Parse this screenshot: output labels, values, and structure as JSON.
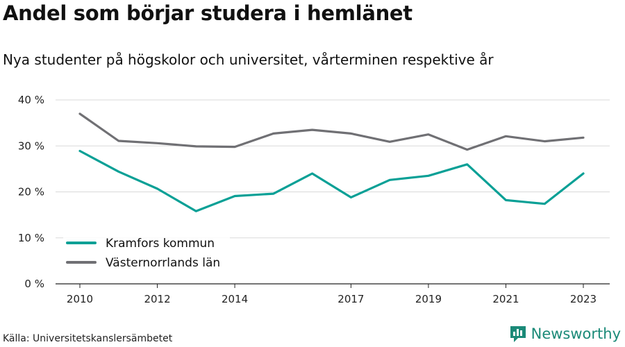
{
  "header": {
    "title": "Andel som börjar studera i hemlänet",
    "subtitle": "Nya studenter på högskolor och universitet, vårterminen respektive år"
  },
  "footer": {
    "source": "Källa: Universitetskanslersämbetet",
    "brand": "Newsworthy"
  },
  "colors": {
    "kramfors": "#0aa096",
    "vasternorrland": "#707074",
    "grid": "#d9d9d9",
    "brand": "#1b8a78"
  },
  "chart_data": {
    "type": "line",
    "x": [
      2010,
      2011,
      2012,
      2013,
      2014,
      2015,
      2016,
      2017,
      2018,
      2019,
      2020,
      2021,
      2022,
      2023
    ],
    "x_tick_labels": [
      "2010",
      "2012",
      "2014",
      "2017",
      "2019",
      "2021",
      "2023"
    ],
    "y_tick_labels": [
      "0 %",
      "10 %",
      "20 %",
      "30 %",
      "40 %"
    ],
    "ylim": [
      0,
      40
    ],
    "grid": true,
    "legend_position": "bottom-left",
    "series": [
      {
        "name": "Kramfors kommun",
        "color": "#0aa096",
        "values": [
          28.9,
          24.4,
          20.7,
          15.8,
          19.1,
          19.6,
          24.0,
          18.8,
          22.6,
          23.5,
          26.0,
          18.2,
          17.4,
          24.0
        ]
      },
      {
        "name": "Västernorrlands län",
        "color": "#707074",
        "values": [
          37.0,
          31.1,
          30.6,
          29.9,
          29.8,
          32.7,
          33.5,
          32.7,
          30.9,
          32.5,
          29.2,
          32.1,
          31.0,
          31.8
        ]
      }
    ]
  }
}
